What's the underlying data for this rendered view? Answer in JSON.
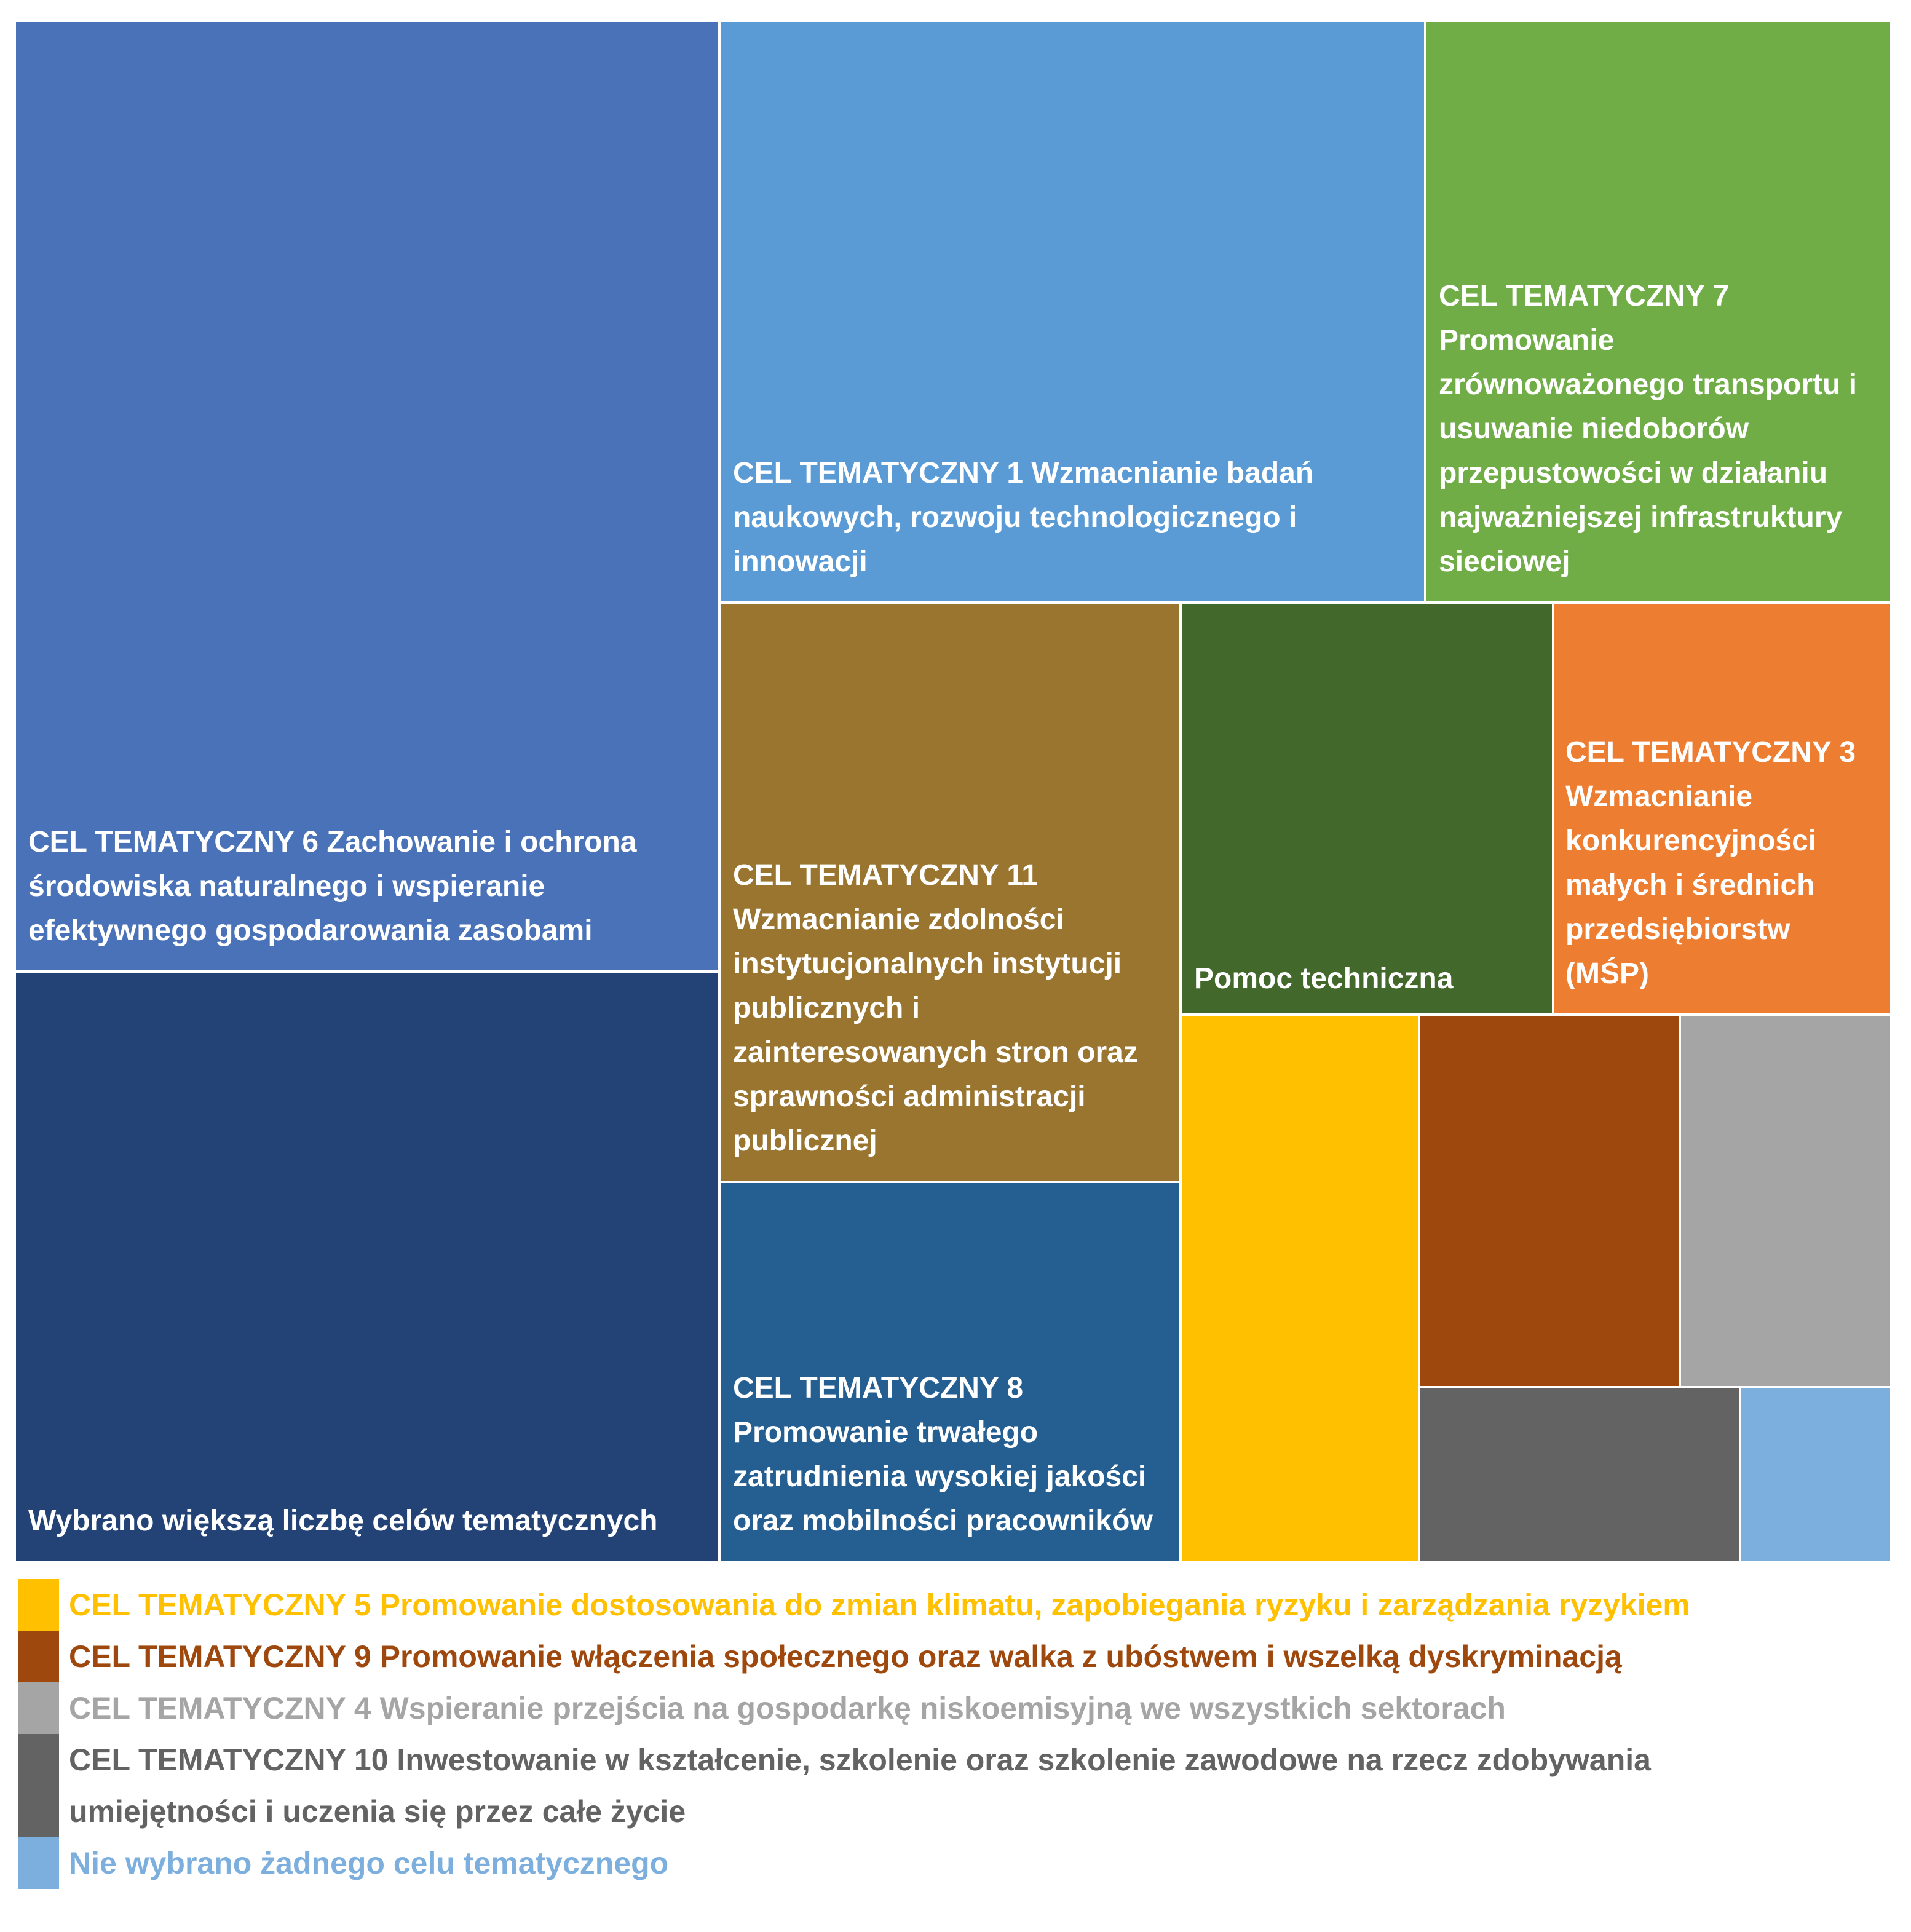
{
  "chart_data": {
    "type": "treemap",
    "title": "",
    "items": [
      {
        "id": "ct6",
        "label": "CEL TEMATYCZNY 6 Zachowanie i ochrona\nśrodowiska naturalnego i wspieranie\nefektywnego gospodarowania zasobami",
        "color": "#4A72B8",
        "value": 23.1
      },
      {
        "id": "multi",
        "label": "Wybrano większą liczbę celów tematycznych",
        "color": "#234377",
        "value": 14.3
      },
      {
        "id": "ct1",
        "label": "CEL TEMATYCZNY 1 Wzmacnianie badań\nnaukowych, rozwoju technologicznego i\ninnowacji",
        "color": "#5B9BD5",
        "value": 14.2
      },
      {
        "id": "ct7",
        "label": "CEL TEMATYCZNY 7\nPromowanie\nzrównoważonego transportu i\nusuwanie niedoborów\nprzepustowości w działaniu\nnajważniejszej infrastruktury\nsieciowej",
        "color": "#70AD47",
        "value": 7.6
      },
      {
        "id": "ct11",
        "label": "CEL TEMATYCZNY 11\nWzmacnianie zdolności\ninstytucjonalnych instytucji\npublicznych i\nzainteresowanych stron oraz\nsprawności administracji\npublicznej",
        "color": "#997530",
        "value": 7.0
      },
      {
        "id": "ct8",
        "label": "CEL TEMATYCZNY 8\nPromowanie trwałego\nzatrudnienia wysokiej jakości\noraz mobilności pracowników",
        "color": "#255E91",
        "value": 4.6
      },
      {
        "id": "pomoc",
        "label": "Pomoc techniczna",
        "color": "#43682B",
        "value": 4.0
      },
      {
        "id": "ct3",
        "label": "CEL TEMATYCZNY 3\nWzmacnianie\nkonkurencyjności\nmałych i średnich\nprzedsiębiorstw\n(MŚP)",
        "color": "#ED7D31",
        "value": 3.6
      },
      {
        "id": "ct5",
        "label": "",
        "color": "#FFC000",
        "value": 3.5
      },
      {
        "id": "ct9",
        "label": "",
        "color": "#9E480E",
        "value": 2.6
      },
      {
        "id": "ct4",
        "label": "",
        "color": "#A5A5A5",
        "value": 2.6
      },
      {
        "id": "ct10",
        "label": "",
        "color": "#636363",
        "value": 1.7
      },
      {
        "id": "none",
        "label": "",
        "color": "#7CAFDD",
        "value": 0.8
      }
    ],
    "legend": [
      {
        "text": "CEL TEMATYCZNY 5 Promowanie dostosowania do zmian klimatu, zapobiegania ryzyku i zarządzania ryzykiem",
        "color": "#FFC000"
      },
      {
        "text": "CEL TEMATYCZNY 9 Promowanie włączenia społecznego oraz walka z ubóstwem i wszelką dyskryminacją",
        "color": "#9E480E"
      },
      {
        "text": "CEL TEMATYCZNY 4 Wspieranie przejścia na gospodarkę niskoemisyjną we wszystkich sektorach",
        "color": "#A5A5A5"
      },
      {
        "text": "CEL TEMATYCZNY 10 Inwestowanie w kształcenie, szkolenie oraz szkolenie zawodowe na rzecz zdobywania\numiejętności i uczenia się przez całe życie",
        "color": "#636363"
      },
      {
        "text": "Nie wybrano żadnego celu tematycznego",
        "color": "#7CAFDD"
      }
    ]
  }
}
